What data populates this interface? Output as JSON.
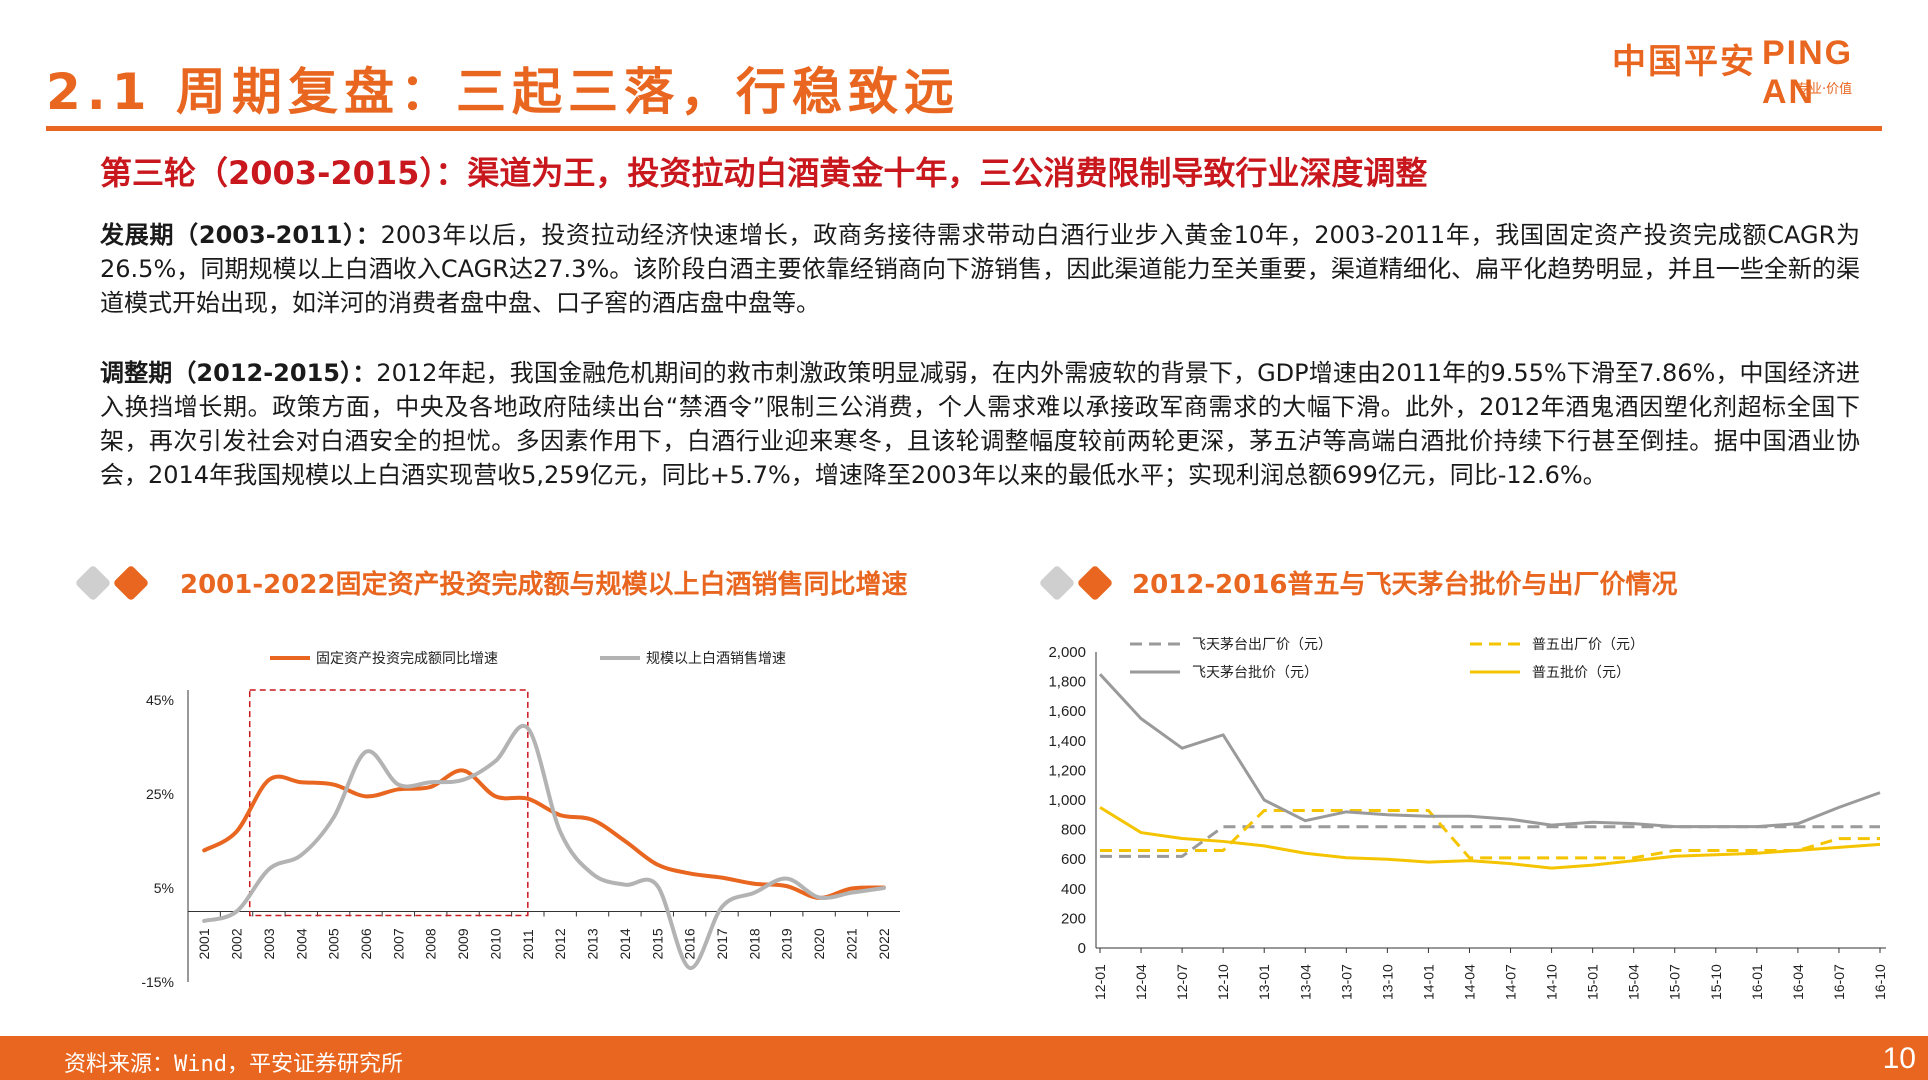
{
  "header": {
    "title": "2.1 周期复盘：三起三落，行稳致远",
    "logo_cn": "中国平安",
    "logo_en": "PING AN",
    "logo_sub": "专业·价值"
  },
  "subtitle": "第三轮（2003-2015）：渠道为王，投资拉动白酒黄金十年，三公消费限制导致行业深度调整",
  "para1": {
    "label": "发展期（2003-2011）：",
    "text": "2003年以后，投资拉动经济快速增长，政商务接待需求带动白酒行业步入黄金10年，2003-2011年，我国固定资产投资完成额CAGR为26.5%，同期规模以上白酒收入CAGR达27.3%。该阶段白酒主要依靠经销商向下游销售，因此渠道能力至关重要，渠道精细化、扁平化趋势明显，并且一些全新的渠道模式开始出现，如洋河的消费者盘中盘、口子窖的酒店盘中盘等。"
  },
  "para2": {
    "label": "调整期（2012-2015）：",
    "text": "2012年起，我国金融危机期间的救市刺激政策明显减弱，在内外需疲软的背景下，GDP增速由2011年的9.55%下滑至7.86%，中国经济进入换挡增长期。政策方面，中央及各地政府陆续出台“禁酒令”限制三公消费，个人需求难以承接政军商需求的大幅下滑。此外，2012年酒鬼酒因塑化剂超标全国下架，再次引发社会对白酒安全的担忧。多因素作用下，白酒行业迎来寒冬，且该轮调整幅度较前两轮更深，茅五泸等高端白酒批价持续下行甚至倒挂。据中国酒业协会，2014年我国规模以上白酒实现营收5,259亿元，同比+5.7%，增速降至2003年以来的最低水平；实现利润总额699亿元，同比-12.6%。"
  },
  "chart1_title": "2001-2022固定资产投资完成额与规模以上白酒销售同比增速",
  "chart2_title": "2012-2016普五与飞天茅台批价与出厂价情况",
  "footer": {
    "source": "资料来源：Wind，平安证券研究所",
    "page": "10"
  },
  "colors": {
    "accent": "#e8661f",
    "red": "#c9171e",
    "gray": "#b3b3b3",
    "yellow": "#f5c400",
    "grayline": "#9a9a9a"
  },
  "chart_data": [
    {
      "type": "line",
      "title": "",
      "ylabel": "",
      "ylim": [
        -15,
        45
      ],
      "yticks": [
        "45%",
        "25%",
        "5%",
        "-15%"
      ],
      "yticks_values": [
        45,
        25,
        5,
        -15
      ],
      "categories": [
        "2001",
        "2002",
        "2003",
        "2004",
        "2005",
        "2006",
        "2007",
        "2008",
        "2009",
        "2010",
        "2011",
        "2012",
        "2013",
        "2014",
        "2015",
        "2016",
        "2017",
        "2018",
        "2019",
        "2020",
        "2021",
        "2022"
      ],
      "series": [
        {
          "name": "固定资产投资完成额同比增速",
          "color": "#e8661f",
          "values": [
            13.0,
            17.0,
            28.0,
            27.5,
            27.0,
            24.5,
            26.0,
            26.5,
            30.0,
            24.5,
            24.0,
            20.5,
            19.5,
            15.0,
            10.0,
            8.1,
            7.2,
            5.9,
            5.4,
            2.9,
            4.9,
            5.1
          ]
        },
        {
          "name": "规模以上白酒销售增速",
          "color": "#b3b3b3",
          "values": [
            -2.0,
            0.0,
            9.0,
            12.0,
            20.0,
            34.0,
            27.0,
            27.5,
            28.0,
            32.0,
            39.0,
            17.0,
            8.0,
            5.7,
            5.5,
            -12.0,
            1.0,
            4.0,
            7.0,
            3.0,
            4.0,
            5.0
          ]
        }
      ],
      "highlight_box": {
        "from": "2003",
        "to": "2011"
      }
    },
    {
      "type": "line",
      "title": "",
      "ylabel": "",
      "ylim": [
        0,
        2000
      ],
      "yticks": [
        "2,000",
        "1,800",
        "1,600",
        "1,400",
        "1,200",
        "1,000",
        "800",
        "600",
        "400",
        "200",
        "0"
      ],
      "yticks_values": [
        2000,
        1800,
        1600,
        1400,
        1200,
        1000,
        800,
        600,
        400,
        200,
        0
      ],
      "x": [
        "12-01",
        "12-04",
        "12-07",
        "12-10",
        "13-01",
        "13-04",
        "13-07",
        "13-10",
        "14-01",
        "14-04",
        "14-07",
        "14-10",
        "15-01",
        "15-04",
        "15-07",
        "15-10",
        "16-01",
        "16-04",
        "16-07",
        "16-10"
      ],
      "series": [
        {
          "name": "飞天茅台出厂价（元）",
          "color": "#9a9a9a",
          "dashed": true,
          "values": [
            619,
            619,
            619,
            819,
            819,
            819,
            819,
            819,
            819,
            819,
            819,
            819,
            819,
            819,
            819,
            819,
            819,
            819,
            819,
            819
          ]
        },
        {
          "name": "普五出厂价（元）",
          "color": "#f5c400",
          "dashed": true,
          "values": [
            659,
            659,
            659,
            659,
            929,
            929,
            929,
            929,
            929,
            609,
            609,
            609,
            609,
            609,
            659,
            659,
            659,
            659,
            739,
            739
          ]
        },
        {
          "name": "飞天茅台批价（元）",
          "color": "#9a9a9a",
          "dashed": false,
          "values": [
            1850,
            1550,
            1350,
            1440,
            1000,
            860,
            920,
            900,
            890,
            890,
            870,
            830,
            850,
            840,
            820,
            820,
            820,
            840,
            950,
            1050
          ]
        },
        {
          "name": "普五批价（元）",
          "color": "#f5c400",
          "dashed": false,
          "values": [
            950,
            780,
            740,
            720,
            690,
            640,
            610,
            600,
            580,
            590,
            570,
            540,
            560,
            590,
            620,
            630,
            640,
            660,
            680,
            700
          ]
        }
      ]
    }
  ]
}
